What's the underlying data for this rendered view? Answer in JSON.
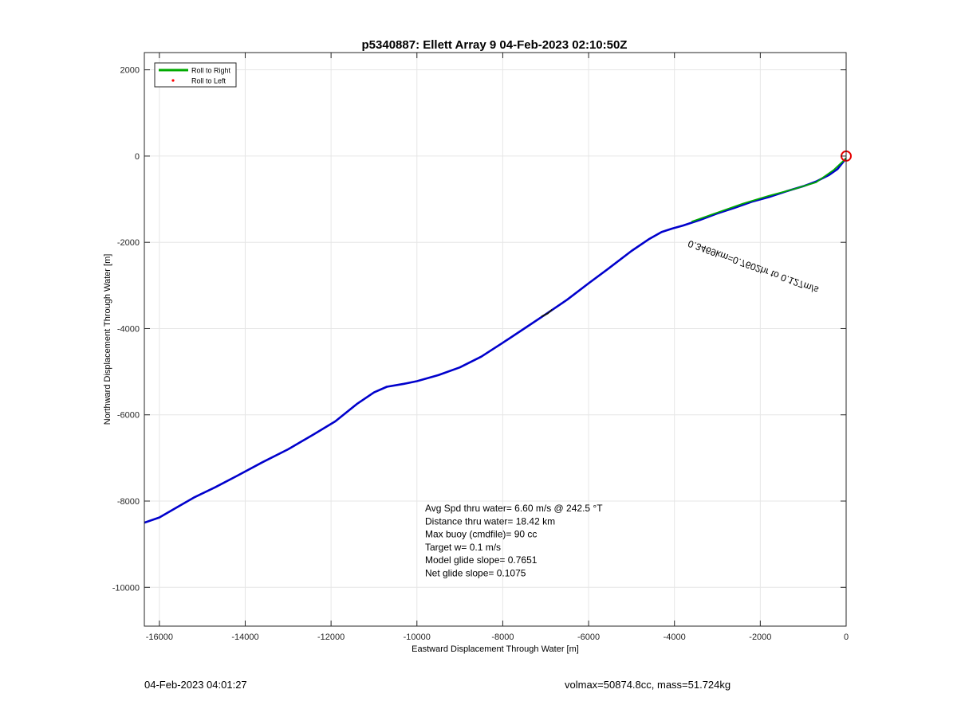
{
  "chart_data": {
    "type": "line",
    "title": "p5340887: Ellett Array 9 04-Feb-2023 02:10:50Z",
    "xlabel": "Eastward Displacement Through Water [m]",
    "ylabel": "Northward Displacement Through Water [m]",
    "xlim": [
      -16350,
      0
    ],
    "ylim": [
      -10900,
      2400
    ],
    "xticks": [
      -16000,
      -14000,
      -12000,
      -10000,
      -8000,
      -6000,
      -4000,
      -2000,
      0
    ],
    "yticks": [
      2000,
      0,
      -2000,
      -4000,
      -6000,
      -8000,
      -10000
    ],
    "grid": true,
    "legend_position": "top-left",
    "legend": [
      {
        "label": "Roll to Right",
        "color": "#00aa00",
        "marker": "line"
      },
      {
        "label": "Roll to Left",
        "color": "#ff0000",
        "marker": "dot"
      }
    ],
    "series": [
      {
        "color": "#0000cc",
        "x": [
          -16350,
          -16000,
          -15600,
          -15200,
          -14700,
          -14200,
          -13600,
          -13000,
          -12400,
          -11900,
          -11400,
          -11000,
          -10700,
          -10300,
          -10000,
          -9500,
          -9000,
          -8500,
          -8000,
          -7500,
          -7000,
          -6500,
          -6000,
          -5500,
          -5000,
          -4600,
          -4300,
          -4050,
          -3800,
          -3400,
          -3000,
          -2600,
          -2200,
          -1800,
          -1400,
          -1000,
          -700,
          -400,
          -200,
          0
        ],
        "y": [
          -8500,
          -8380,
          -8150,
          -7920,
          -7680,
          -7420,
          -7100,
          -6800,
          -6450,
          -6150,
          -5750,
          -5480,
          -5350,
          -5280,
          -5220,
          -5080,
          -4900,
          -4650,
          -4330,
          -4000,
          -3670,
          -3330,
          -2950,
          -2580,
          -2200,
          -1930,
          -1760,
          -1680,
          -1610,
          -1480,
          -1330,
          -1200,
          -1060,
          -950,
          -820,
          -700,
          -590,
          -440,
          -300,
          -50
        ]
      },
      {
        "color": "#00aa00",
        "x": [
          -3600,
          -3000,
          -2400,
          -1800,
          -1200,
          -700,
          -300,
          0
        ],
        "y": [
          -1520,
          -1310,
          -1100,
          -920,
          -760,
          -610,
          -330,
          -50
        ]
      },
      {
        "color": "#111111",
        "x": [
          -7100,
          -6950,
          -6850
        ],
        "y": [
          -3720,
          -3650,
          -3560
        ]
      }
    ],
    "end_marker": {
      "x": 0,
      "y": 0,
      "color": "#e60000"
    },
    "annotation": {
      "text": "0.3469km=0.7602hr to 0.127m/s",
      "x": -3650,
      "y": -1950,
      "rotation_deg": 200
    },
    "stats": [
      "Avg Spd thru water=  6.60 m/s @ 242.5 °T",
      "Distance thru water= 18.42 km",
      "Max buoy (cmdfile)= 90 cc",
      "Target w= 0.1 m/s",
      "Model glide slope= 0.7651",
      "Net glide slope= 0.1075"
    ]
  },
  "footer": {
    "left": "04-Feb-2023 04:01:27",
    "right": "volmax=50874.8cc, mass=51.724kg"
  }
}
